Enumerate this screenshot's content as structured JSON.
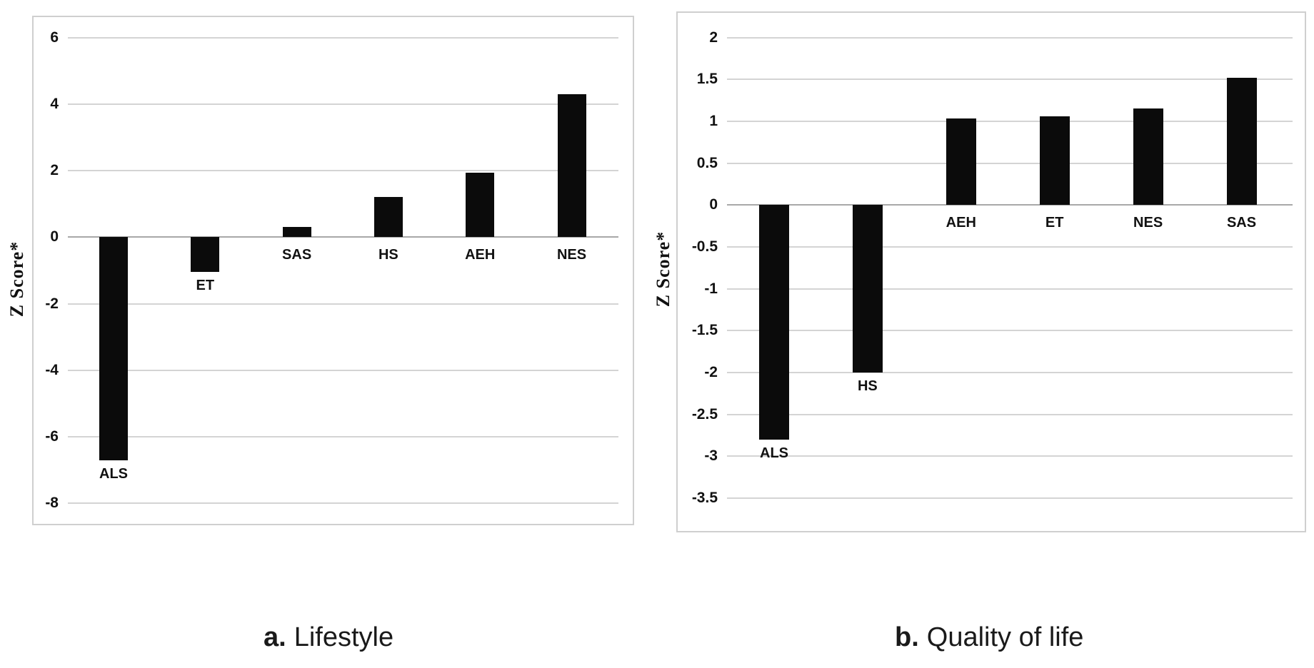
{
  "figure": {
    "background": "#ffffff",
    "bar_color": "#0b0b0b",
    "gridline_color": "#d4d4d4",
    "zero_line_color": "#a8a8a8"
  },
  "captions": {
    "a": {
      "prefix": "a.",
      "text": "Lifestyle"
    },
    "b": {
      "prefix": "b.",
      "text": "Quality of life"
    }
  },
  "chart_data": [
    {
      "id": "lifestyle",
      "type": "bar",
      "title": "a. Lifestyle",
      "xlabel": "",
      "ylabel": "Z Score*",
      "categories": [
        "ALS",
        "ET",
        "SAS",
        "HS",
        "AEH",
        "NES"
      ],
      "values": [
        -6.7,
        -1.05,
        0.3,
        1.2,
        1.95,
        4.3
      ],
      "yticks": [
        6,
        4,
        2,
        0,
        -2,
        -4,
        -6,
        -8
      ],
      "ylim": [
        -8,
        6
      ],
      "grid": true,
      "legend": "none",
      "bar_color": "#0b0b0b"
    },
    {
      "id": "quality_of_life",
      "type": "bar",
      "title": "b. Quality of life",
      "xlabel": "",
      "ylabel": "Z Score*",
      "categories": [
        "ALS",
        "HS",
        "AEH",
        "ET",
        "NES",
        "SAS"
      ],
      "values": [
        -2.8,
        -2.0,
        1.03,
        1.06,
        1.15,
        1.52
      ],
      "yticks": [
        2,
        1.5,
        1,
        0.5,
        0,
        -0.5,
        -1,
        -1.5,
        -2,
        -2.5,
        -3,
        -3.5
      ],
      "ylim": [
        -3.5,
        2
      ],
      "grid": true,
      "legend": "none",
      "bar_color": "#0b0b0b"
    }
  ]
}
